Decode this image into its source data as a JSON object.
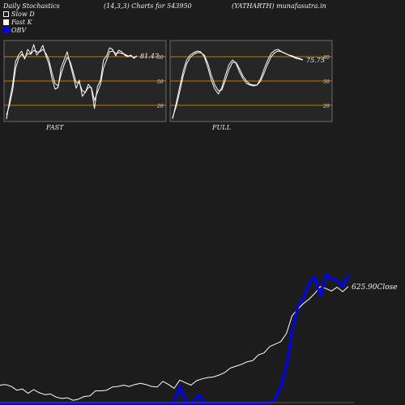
{
  "header": {
    "left": "Daily Stochastics",
    "center": "(14,3,3) Charts for 543950",
    "right": "(YATHARTH) munafasutra.in"
  },
  "legend": [
    {
      "label": "Slow  D",
      "color": "#ffffff"
    },
    {
      "label": "Fast  K",
      "color": "#ffffff"
    },
    {
      "label": "OBV",
      "color": "#0000ff"
    }
  ],
  "panels": {
    "fast_label": "FAST",
    "full_label": "FULL",
    "fast_value": "81.47",
    "full_value": "75.75",
    "levels": [
      80,
      50,
      20
    ]
  },
  "close_label": "625.90Close",
  "colors": {
    "background": "#1c1c1c",
    "panel_bg": "#262626",
    "level_line": "#c87800",
    "price_line": "#ffffff",
    "obv_line": "#0000ff"
  },
  "chart_data": [
    {
      "type": "line",
      "name": "fast-stochastic",
      "ylim": [
        0,
        100
      ],
      "series": [
        {
          "name": "Fast K",
          "values": [
            3,
            25,
            45,
            74,
            82,
            87,
            77,
            89,
            84,
            95,
            82,
            87,
            94,
            81,
            71,
            53,
            40,
            42,
            66,
            76,
            86,
            71,
            56,
            41,
            51,
            31,
            36,
            46,
            41,
            16,
            43,
            51,
            76,
            81,
            91,
            89,
            81,
            88,
            86,
            82,
            80,
            82,
            78,
            81
          ]
        },
        {
          "name": "Slow D",
          "values": [
            8,
            20,
            38,
            65,
            78,
            83,
            79,
            84,
            83,
            88,
            86,
            86,
            89,
            84,
            76,
            60,
            47,
            44,
            58,
            70,
            79,
            74,
            61,
            48,
            48,
            38,
            36,
            42,
            42,
            26,
            36,
            46,
            66,
            76,
            86,
            87,
            84,
            85,
            84,
            83,
            81,
            81,
            79,
            81
          ]
        }
      ]
    },
    {
      "type": "line",
      "name": "full-stochastic",
      "ylim": [
        0,
        100
      ],
      "series": [
        {
          "name": "Fast K",
          "values": [
            3,
            22,
            42,
            62,
            76,
            82,
            85,
            87,
            86,
            80,
            67,
            51,
            40,
            34,
            42,
            57,
            70,
            76,
            72,
            61,
            53,
            47,
            45,
            44,
            45,
            53,
            65,
            76,
            84,
            88,
            89,
            86,
            84,
            82,
            80,
            78,
            77,
            76
          ]
        },
        {
          "name": "Slow D",
          "values": [
            5,
            18,
            36,
            56,
            71,
            79,
            83,
            85,
            85,
            82,
            72,
            57,
            45,
            38,
            39,
            51,
            64,
            73,
            73,
            65,
            56,
            50,
            46,
            45,
            45,
            50,
            60,
            71,
            80,
            85,
            87,
            86,
            84,
            82,
            81,
            79,
            78,
            76
          ]
        }
      ]
    },
    {
      "type": "line",
      "name": "price-obv",
      "series": [
        {
          "name": "Close",
          "values": [
            470,
            471,
            468,
            462,
            464,
            457,
            463,
            458,
            455,
            456,
            451,
            449,
            450,
            446,
            448,
            452,
            453,
            461,
            461,
            462,
            467,
            468,
            470,
            468,
            471,
            473,
            471,
            468,
            467,
            476,
            471,
            465,
            478,
            474,
            470,
            477,
            480,
            482,
            483,
            486,
            490,
            497,
            500,
            503,
            507,
            509,
            518,
            521,
            531,
            535,
            539,
            552,
            580,
            590,
            599,
            606,
            615,
            626,
            623,
            619,
            625,
            618,
            626
          ]
        },
        {
          "name": "OBV",
          "values": [
            -3,
            -3,
            -3,
            -3,
            -3,
            -3,
            -3,
            -3,
            -3,
            -3,
            -3,
            -3,
            -3,
            -3,
            -3,
            -3,
            -3,
            -3,
            -3,
            -3,
            -3,
            -3,
            -3,
            -3,
            -3,
            -3,
            -3,
            -3,
            -3,
            -3,
            -3,
            -3,
            -3,
            -3,
            -3,
            -3,
            -3,
            -3,
            -3,
            -3,
            -3,
            -3,
            -3,
            -3,
            -3,
            -3,
            -3,
            -3,
            0,
            8,
            40,
            90,
            180,
            235,
            258,
            295,
            308,
            262,
            315,
            305,
            300,
            285,
            315
          ]
        }
      ]
    }
  ]
}
